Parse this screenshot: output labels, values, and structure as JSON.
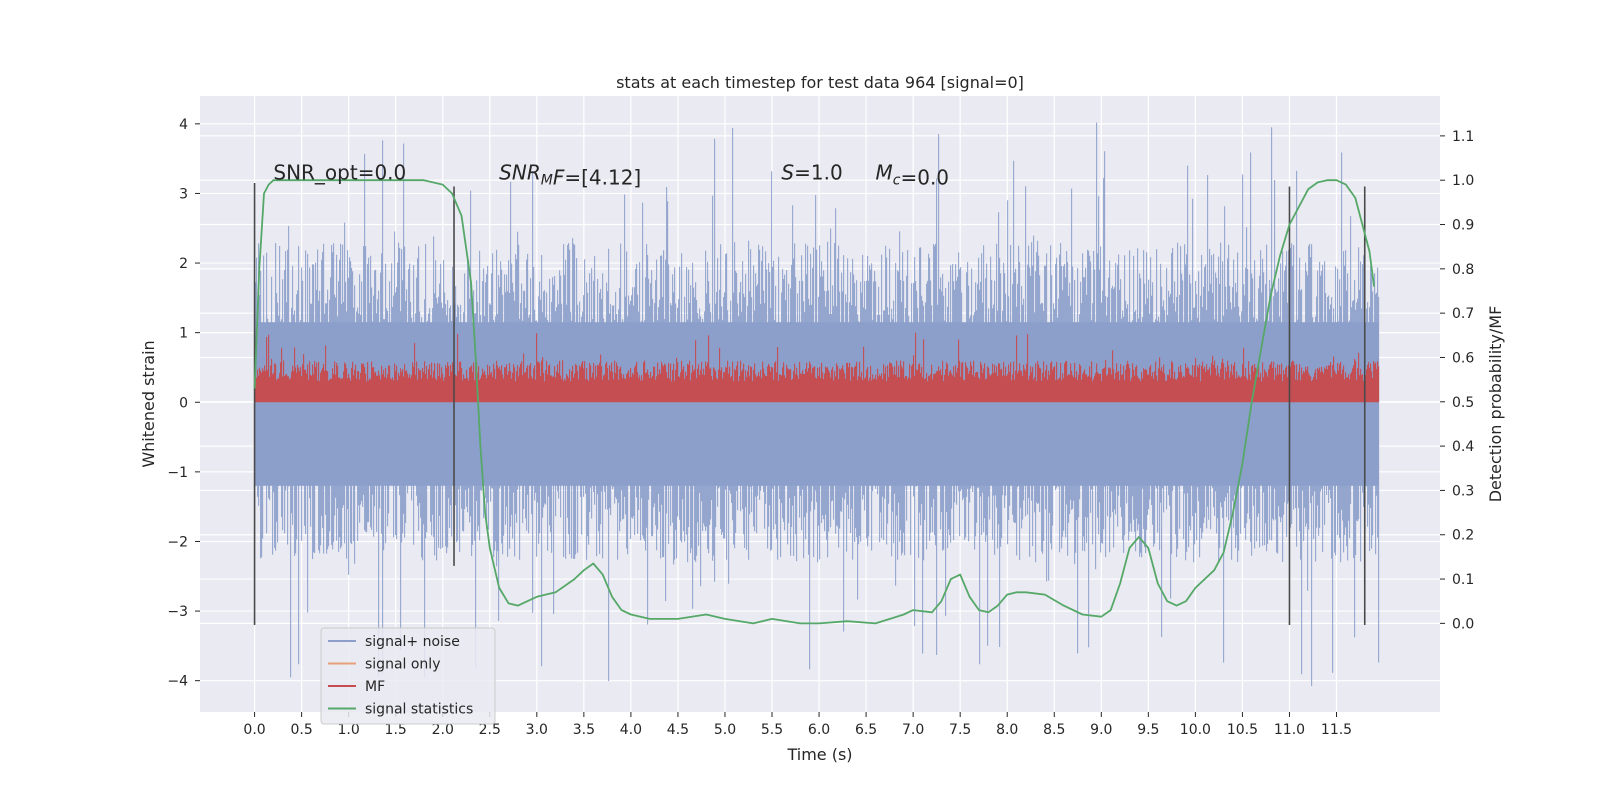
{
  "chart_data": {
    "type": "line",
    "title": "stats at each timestep for test data 964 [signal=0]",
    "xlabel": "Time (s)",
    "ylabel_left": "Whitened strain",
    "ylabel_right": "Detection probability/MF",
    "xlim": [
      -0.58,
      12.6
    ],
    "ylim_left": [
      -4.45,
      4.4
    ],
    "ylim_right": [
      -0.2,
      1.19
    ],
    "x_ticks": [
      0.0,
      0.5,
      1.0,
      1.5,
      2.0,
      2.5,
      3.0,
      3.5,
      4.0,
      4.5,
      5.0,
      5.5,
      6.0,
      6.5,
      7.0,
      7.5,
      8.0,
      8.5,
      9.0,
      9.5,
      10.0,
      10.5,
      11.0,
      11.5
    ],
    "x_tick_labels": [
      "0.0",
      "0.5",
      "1.0",
      "1.5",
      "2.0",
      "2.5",
      "3.0",
      "3.5",
      "4.0",
      "4.5",
      "5.0",
      "5.5",
      "6.0",
      "6.5",
      "7.0",
      "7.5",
      "8.0",
      "8.5",
      "9.0",
      "9.5",
      "10.0",
      "10.5",
      "11.0",
      "11.5"
    ],
    "y_left_ticks": [
      -4,
      -3,
      -2,
      -1,
      0,
      1,
      2,
      3,
      4
    ],
    "y_left_tick_labels": [
      "−4",
      "−3",
      "−2",
      "−1",
      "0",
      "1",
      "2",
      "3",
      "4"
    ],
    "y_right_ticks": [
      0.0,
      0.1,
      0.2,
      0.3,
      0.4,
      0.5,
      0.6,
      0.7,
      0.8,
      0.9,
      1.0,
      1.1
    ],
    "y_right_tick_labels": [
      "0.0",
      "0.1",
      "0.2",
      "0.3",
      "0.4",
      "0.5",
      "0.6",
      "0.7",
      "0.8",
      "0.9",
      "1.0",
      "1.1"
    ],
    "grid": true,
    "legend_position": "lower-left",
    "background_color": "#eaeaf2",
    "series": [
      {
        "name": "signal+ noise",
        "color": "#8c9fcb",
        "axis": "left",
        "x_range": [
          0.0,
          11.95
        ],
        "envelope_values": {
          "typical_min": -2.3,
          "typical_max": 2.3,
          "peak_max": 4.02,
          "peak_min": -4.08
        }
      },
      {
        "name": "signal only",
        "color": "#e8a07a",
        "axis": "left"
      },
      {
        "name": "MF",
        "color": "#c44e52",
        "axis": "left",
        "x_range": [
          0.0,
          11.95
        ],
        "envelope_values": {
          "min": 0.0,
          "typical_max": 0.6,
          "peak_max": 1.02
        }
      },
      {
        "name": "signal statistics",
        "color": "#55a868",
        "axis": "right",
        "x": [
          0.0,
          0.05,
          0.1,
          0.15,
          0.2,
          0.3,
          0.5,
          1.0,
          1.5,
          1.8,
          2.0,
          2.1,
          2.2,
          2.3,
          2.35,
          2.4,
          2.45,
          2.5,
          2.6,
          2.7,
          2.8,
          2.9,
          3.0,
          3.2,
          3.4,
          3.5,
          3.6,
          3.7,
          3.8,
          3.9,
          4.0,
          4.2,
          4.5,
          4.8,
          5.0,
          5.3,
          5.5,
          5.8,
          6.0,
          6.3,
          6.6,
          6.9,
          7.0,
          7.2,
          7.3,
          7.4,
          7.5,
          7.6,
          7.7,
          7.8,
          7.9,
          8.0,
          8.1,
          8.2,
          8.4,
          8.6,
          8.8,
          9.0,
          9.1,
          9.2,
          9.3,
          9.4,
          9.5,
          9.6,
          9.7,
          9.8,
          9.9,
          10.0,
          10.2,
          10.3,
          10.4,
          10.5,
          10.6,
          10.7,
          10.8,
          10.9,
          11.0,
          11.1,
          11.2,
          11.3,
          11.4,
          11.5,
          11.6,
          11.7,
          11.8,
          11.85,
          11.9
        ],
        "values": [
          0.53,
          0.8,
          0.97,
          0.99,
          1.0,
          1.0,
          1.0,
          1.0,
          1.0,
          1.0,
          0.99,
          0.97,
          0.92,
          0.77,
          0.6,
          0.4,
          0.25,
          0.17,
          0.08,
          0.045,
          0.04,
          0.05,
          0.06,
          0.07,
          0.1,
          0.12,
          0.135,
          0.11,
          0.06,
          0.03,
          0.02,
          0.01,
          0.01,
          0.02,
          0.01,
          0.0,
          0.01,
          0.0,
          0.0,
          0.005,
          0.0,
          0.02,
          0.03,
          0.025,
          0.05,
          0.1,
          0.11,
          0.06,
          0.03,
          0.025,
          0.04,
          0.065,
          0.07,
          0.07,
          0.065,
          0.04,
          0.02,
          0.015,
          0.03,
          0.09,
          0.17,
          0.195,
          0.17,
          0.09,
          0.05,
          0.04,
          0.05,
          0.08,
          0.12,
          0.16,
          0.25,
          0.36,
          0.5,
          0.62,
          0.74,
          0.83,
          0.9,
          0.94,
          0.98,
          0.995,
          1.0,
          1.0,
          0.99,
          0.96,
          0.88,
          0.84,
          0.76
        ]
      }
    ],
    "vertical_lines": [
      {
        "x": 0.0,
        "y_range": [
          -3.2,
          3.15
        ]
      },
      {
        "x": 2.12,
        "y_range": [
          -2.35,
          3.1
        ]
      },
      {
        "x": 11.0,
        "y_range": [
          -3.2,
          3.1
        ]
      },
      {
        "x": 11.8,
        "y_range": [
          -3.2,
          3.1
        ]
      }
    ],
    "annotations": [
      {
        "text": "SNR_opt=0.0",
        "x": 0.2,
        "y": 3.2
      },
      {
        "text_parts": [
          {
            "t": "SNR",
            "italic": true
          },
          {
            "t": "M",
            "italic": true,
            "sub": true
          },
          {
            "t": "F",
            "italic": true
          },
          {
            "t": "=[4.12]",
            "italic": false
          }
        ],
        "x": 2.6,
        "y": 3.2
      },
      {
        "text_parts": [
          {
            "t": "S",
            "italic": true
          },
          {
            "t": "=1.0",
            "italic": false
          }
        ],
        "x": 5.6,
        "y": 3.2
      },
      {
        "text_parts": [
          {
            "t": "M",
            "italic": true
          },
          {
            "t": "c",
            "italic": true,
            "sub": true
          },
          {
            "t": "=0.0",
            "italic": false
          }
        ],
        "x": 6.6,
        "y": 3.2
      }
    ]
  }
}
